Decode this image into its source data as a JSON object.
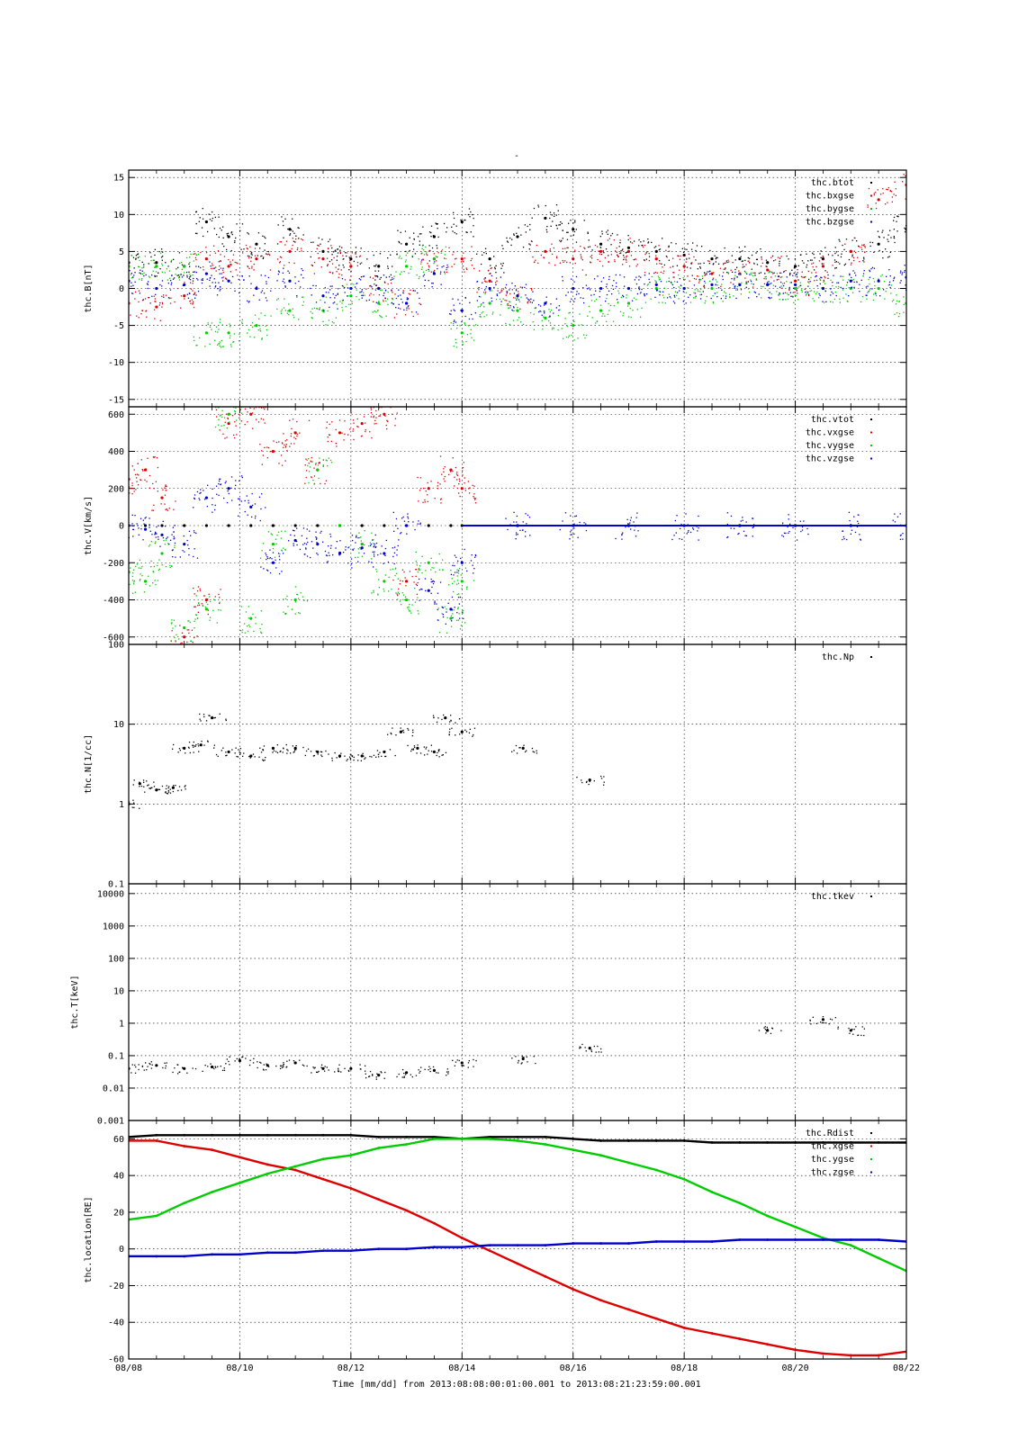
{
  "title": "-",
  "xlabel": "Time [mm/dd]  from 2013:08:08:00:01:00.001  to  2013:08:21:23:59:00.001",
  "x_ticks": [
    "08/08",
    "08/10",
    "08/12",
    "08/14",
    "08/16",
    "08/18",
    "08/20",
    "08/22"
  ],
  "colors": {
    "black": "#000000",
    "red": "#dd0000",
    "green": "#00cc00",
    "blue": "#0000cc"
  },
  "chart_data": [
    {
      "type": "scatter",
      "ylabel": "thc.B[nT]",
      "ylim": [
        -16,
        16
      ],
      "y_ticks": [
        "15",
        "10",
        "5",
        "0",
        "-5",
        "-10",
        "-15"
      ],
      "legend_position": "top-right",
      "x": [
        8.0,
        8.5,
        9.0,
        9.4,
        9.8,
        10.3,
        10.9,
        11.5,
        12.0,
        12.5,
        13.0,
        13.5,
        14.0,
        14.5,
        15.0,
        15.5,
        16.0,
        16.5,
        17.0,
        17.5,
        18.0,
        18.5,
        19.0,
        19.5,
        20.0,
        20.5,
        21.0,
        21.5,
        22.0
      ],
      "series": [
        {
          "name": "thc.btot",
          "color": "black",
          "values": [
            3.5,
            3.5,
            3.0,
            9.0,
            7.0,
            6.0,
            8.0,
            5.0,
            4.0,
            3.0,
            6.0,
            7.0,
            9.0,
            4.0,
            7.0,
            9.5,
            8.0,
            6.0,
            5.5,
            5.0,
            4.5,
            4.0,
            4.0,
            3.5,
            3.0,
            4.0,
            5.0,
            6.0,
            8.0
          ]
        },
        {
          "name": "thc.bxgse",
          "color": "red",
          "values": [
            -2.0,
            -2.5,
            -1.0,
            4.0,
            3.0,
            4.0,
            5.0,
            4.0,
            3.0,
            0.0,
            -2.0,
            4.0,
            4.0,
            1.0,
            -1.0,
            5.0,
            4.0,
            5.0,
            5.0,
            4.0,
            3.0,
            2.0,
            2.0,
            2.5,
            1.0,
            3.0,
            5.0,
            12.0,
            14.0
          ]
        },
        {
          "name": "thc.bygse",
          "color": "green",
          "values": [
            3.0,
            3.0,
            3.0,
            -6.0,
            -6.0,
            -5.0,
            -3.0,
            -3.0,
            -1.0,
            -2.0,
            3.0,
            4.0,
            -6.0,
            -2.0,
            -3.0,
            -4.0,
            -5.0,
            -3.0,
            -2.0,
            0.0,
            0.0,
            0.0,
            0.5,
            0.5,
            0.0,
            0.0,
            0.0,
            0.0,
            -2.0
          ]
        },
        {
          "name": "thc.bzgse",
          "color": "blue",
          "values": [
            1.0,
            0.0,
            0.5,
            2.0,
            1.0,
            0.0,
            1.0,
            -1.0,
            0.0,
            0.0,
            -2.0,
            2.0,
            -3.0,
            0.0,
            -1.0,
            -2.0,
            0.0,
            0.0,
            0.0,
            0.5,
            0.0,
            0.5,
            0.5,
            0.5,
            0.5,
            0.0,
            1.0,
            1.0,
            1.5
          ]
        }
      ]
    },
    {
      "type": "scatter",
      "ylabel": "thc.V[km/s]",
      "ylim": [
        -640,
        640
      ],
      "y_ticks": [
        "600",
        "400",
        "200",
        "0",
        "-200",
        "-400",
        "-600"
      ],
      "legend_position": "top-right",
      "x": [
        8.0,
        8.3,
        8.6,
        9.0,
        9.4,
        9.8,
        10.2,
        10.6,
        11.0,
        11.4,
        11.8,
        12.2,
        12.6,
        13.0,
        13.4,
        13.8,
        14.0,
        15.0,
        16.0,
        17.0,
        18.0,
        19.0,
        20.0,
        21.0,
        22.0
      ],
      "series": [
        {
          "name": "thc.vtot",
          "color": "black",
          "values": [
            0,
            0,
            0,
            0,
            0,
            0,
            0,
            0,
            0,
            0,
            0,
            0,
            0,
            0,
            0,
            0,
            0,
            0,
            0,
            0,
            0,
            0,
            0,
            0,
            0
          ]
        },
        {
          "name": "thc.vxgse",
          "color": "red",
          "values": [
            250,
            300,
            150,
            -600,
            -400,
            550,
            600,
            400,
            500,
            300,
            500,
            550,
            600,
            -300,
            200,
            300,
            200,
            0,
            0,
            0,
            0,
            0,
            0,
            0,
            0
          ]
        },
        {
          "name": "thc.vygse",
          "color": "green",
          "values": [
            -250,
            -300,
            -150,
            -550,
            -450,
            600,
            -500,
            -100,
            -400,
            300,
            0,
            -100,
            -300,
            -400,
            -200,
            -500,
            -300,
            0,
            0,
            0,
            0,
            0,
            0,
            0,
            0
          ]
        },
        {
          "name": "thc.vzgse",
          "color": "blue",
          "values": [
            0,
            -20,
            -50,
            -100,
            150,
            200,
            100,
            -200,
            -80,
            -100,
            -150,
            -120,
            -150,
            0,
            -350,
            -450,
            -200,
            0,
            0,
            0,
            0,
            0,
            0,
            0,
            0
          ]
        }
      ]
    },
    {
      "type": "scatter",
      "ylabel": "thc.N[1/cc]",
      "yscale": "log",
      "ylim": [
        0.1,
        100
      ],
      "y_ticks": [
        "100",
        "10",
        "1",
        "0.1"
      ],
      "legend_position": "top-right",
      "x": [
        8.0,
        8.2,
        8.5,
        8.8,
        9.0,
        9.3,
        9.5,
        9.8,
        10.2,
        10.6,
        11.0,
        11.4,
        11.8,
        12.2,
        12.6,
        12.9,
        13.2,
        13.5,
        13.7,
        14.0,
        15.1,
        16.3
      ],
      "series": [
        {
          "name": "thc.Np",
          "color": "black",
          "values": [
            1.0,
            1.8,
            1.5,
            1.6,
            5.0,
            5.5,
            12.0,
            4.5,
            4.0,
            5.0,
            5.0,
            4.5,
            4.0,
            4.0,
            4.5,
            8.0,
            5.0,
            4.5,
            12.0,
            8.0,
            5.0,
            2.0
          ]
        }
      ]
    },
    {
      "type": "scatter",
      "ylabel": "thc.T[keV]",
      "yscale": "log",
      "ylim": [
        0.001,
        20000
      ],
      "y_ticks": [
        "10000",
        "1000",
        "100",
        "10",
        "1",
        "0.1",
        "0.01",
        "0.001"
      ],
      "legend_position": "top-right",
      "x": [
        8.0,
        8.5,
        9.0,
        9.5,
        10.0,
        10.5,
        11.0,
        11.5,
        12.0,
        12.5,
        13.0,
        13.5,
        14.0,
        15.1,
        16.3,
        19.5,
        20.5,
        21.0
      ],
      "series": [
        {
          "name": "thc.tkev",
          "color": "black",
          "values": [
            0.04,
            0.05,
            0.04,
            0.045,
            0.07,
            0.05,
            0.06,
            0.04,
            0.04,
            0.025,
            0.03,
            0.035,
            0.06,
            0.08,
            0.17,
            0.6,
            1.3,
            0.6
          ]
        }
      ]
    },
    {
      "type": "line",
      "ylabel": "thc.location[RE]",
      "ylim": [
        -60,
        70
      ],
      "y_ticks": [
        "60",
        "40",
        "20",
        "0",
        "-20",
        "-40",
        "-60"
      ],
      "legend_position": "top-right",
      "x": [
        8.0,
        8.5,
        9.0,
        9.5,
        10.0,
        10.5,
        11.0,
        11.5,
        12.0,
        12.5,
        13.0,
        13.5,
        14.0,
        14.5,
        15.0,
        15.5,
        16.0,
        16.5,
        17.0,
        17.5,
        18.0,
        18.5,
        19.0,
        19.5,
        20.0,
        20.5,
        21.0,
        21.5,
        22.0
      ],
      "series": [
        {
          "name": "thc.Rdist",
          "color": "black",
          "values": [
            61,
            62,
            62,
            62,
            62,
            62,
            62,
            62,
            62,
            61,
            61,
            61,
            60,
            61,
            61,
            61,
            60,
            59,
            59,
            59,
            59,
            58,
            58,
            58,
            58,
            58,
            58,
            58,
            58
          ]
        },
        {
          "name": "thc.xgse",
          "color": "red",
          "values": [
            59,
            59,
            56,
            54,
            50,
            46,
            43,
            38,
            33,
            27,
            21,
            14,
            6,
            -1,
            -8,
            -15,
            -22,
            -28,
            -33,
            -38,
            -43,
            -46,
            -49,
            -52,
            -55,
            -57,
            -58,
            -58,
            -56
          ]
        },
        {
          "name": "thc.ygse",
          "color": "green",
          "values": [
            16,
            18,
            25,
            31,
            36,
            41,
            45,
            49,
            51,
            55,
            57,
            60,
            60,
            60,
            59,
            57,
            54,
            51,
            47,
            43,
            38,
            31,
            25,
            18,
            12,
            6,
            2,
            -5,
            -12
          ]
        },
        {
          "name": "thc.zgse",
          "color": "blue",
          "values": [
            -4,
            -4,
            -4,
            -3,
            -3,
            -2,
            -2,
            -1,
            -1,
            0,
            0,
            1,
            1,
            2,
            2,
            2,
            3,
            3,
            3,
            4,
            4,
            4,
            5,
            5,
            5,
            5,
            5,
            5,
            4
          ]
        }
      ]
    }
  ]
}
